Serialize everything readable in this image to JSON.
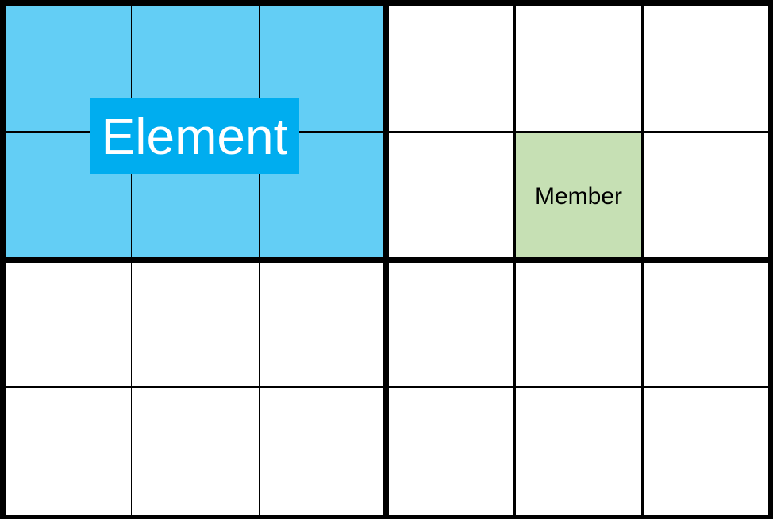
{
  "diagram": {
    "labels": {
      "element": "Element",
      "member": "Member"
    },
    "grid": {
      "block_rows": 2,
      "block_cols": 2,
      "cells_per_block_row": 2,
      "cells_per_block_col": 3
    },
    "highlights": {
      "element_block": {
        "block_row": 0,
        "block_col": 0
      },
      "member_cell": {
        "row": 1,
        "col": 4
      }
    },
    "colors": {
      "background": "#000000",
      "cell": "#ffffff",
      "element_region": "#63cef5",
      "element_label_bg": "#00adef",
      "member_cell": "#c6e0b4"
    }
  }
}
